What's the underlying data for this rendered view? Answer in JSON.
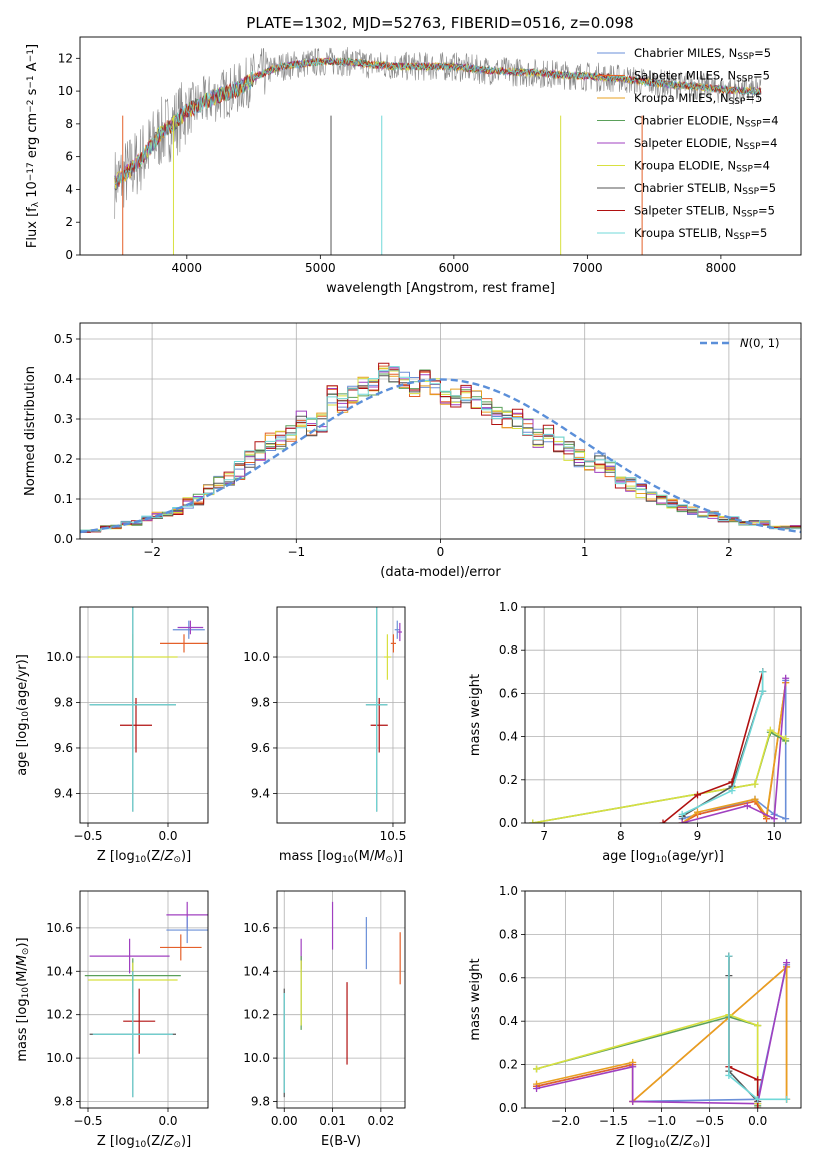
{
  "figure": {
    "title": "PLATE=1302, MJD=52763, FIBERID=0516, z=0.098"
  },
  "series_names": [
    "Chabrier MILES, N$SSP=5",
    "Salpeter MILES, N$SSP=5",
    "Kroupa MILES, N$SSP=5",
    "Chabrier ELODIE, N$SSP=4",
    "Salpeter ELODIE, N$SSP=4",
    "Kroupa ELODIE, N$SSP=4",
    "Chabrier STELIB, N$SSP=5",
    "Salpeter STELIB, N$SSP=5",
    "Kroupa STELIB, N$SSP=5"
  ],
  "legend_entries": [
    {
      "main": "Chabrier MILES, N",
      "sub": "SSP",
      "tail": "=5"
    },
    {
      "main": "Salpeter MILES, N",
      "sub": "SSP",
      "tail": "=5"
    },
    {
      "main": "Kroupa MILES, N",
      "sub": "SSP",
      "tail": "=5"
    },
    {
      "main": "Chabrier ELODIE, N",
      "sub": "SSP",
      "tail": "=4"
    },
    {
      "main": "Salpeter ELODIE, N",
      "sub": "SSP",
      "tail": "=4"
    },
    {
      "main": "Kroupa ELODIE, N",
      "sub": "SSP",
      "tail": "=4"
    },
    {
      "main": "Chabrier STELIB, N",
      "sub": "SSP",
      "tail": "=5"
    },
    {
      "main": "Salpeter STELIB, N",
      "sub": "SSP",
      "tail": "=5"
    },
    {
      "main": "Kroupa STELIB, N",
      "sub": "SSP",
      "tail": "=5"
    }
  ],
  "colors": [
    "#6a8fd8",
    "#e4602a",
    "#e8a020",
    "#5aa05a",
    "#a040c0",
    "#d8e040",
    "#555555",
    "#b01010",
    "#70d8d8"
  ],
  "chart_data": [
    {
      "id": "spectrum",
      "type": "line",
      "title": "PLATE=1302, MJD=52763, FIBERID=0516, z=0.098",
      "xlabel": "wavelength [Angstrom, rest frame]",
      "ylabel": "Flux [f_λ 10^-17 erg cm^-2 s^-1 A^-1]",
      "xlim": [
        3200,
        8600
      ],
      "ylim": [
        0,
        13.3
      ],
      "xticks": [
        4000,
        5000,
        6000,
        7000,
        8000
      ],
      "yticks": [
        0,
        2,
        4,
        6,
        8,
        10,
        12
      ],
      "grid": false,
      "legend_position": "right",
      "data_color": "#888888",
      "model_x": [
        3460,
        3520,
        3600,
        3700,
        3800,
        3900,
        4000,
        4100,
        4200,
        4300,
        4400,
        4500,
        4600,
        4700,
        4800,
        5000,
        5200,
        5400,
        5600,
        5800,
        6000,
        6200,
        6400,
        6600,
        6800,
        7000,
        7200,
        7400,
        7600,
        7800,
        8000,
        8200,
        8300
      ],
      "model_y": [
        4.4,
        4.8,
        5.4,
        6.3,
        7.4,
        8.0,
        8.8,
        9.2,
        9.6,
        9.9,
        10.2,
        10.8,
        11.2,
        11.5,
        11.6,
        11.8,
        11.8,
        11.6,
        11.5,
        11.5,
        11.5,
        11.3,
        11.2,
        11.1,
        11.0,
        10.9,
        10.8,
        10.6,
        10.4,
        10.3,
        10.1,
        10.0,
        10.0
      ]
    },
    {
      "id": "residuals",
      "type": "histogram",
      "xlabel": "(data-model)/error",
      "ylabel": "Normed distribution",
      "xlim": [
        -2.5,
        2.5
      ],
      "ylim": [
        0,
        0.54
      ],
      "xticks": [
        -2,
        -1,
        0,
        1,
        2
      ],
      "yticks": [
        0.0,
        0.1,
        0.2,
        0.3,
        0.4,
        0.5
      ],
      "grid": true,
      "legend": {
        "label": "N(0,1)",
        "position": "top-right"
      },
      "bin_width": 0.1,
      "bins_start": -2.5,
      "values": [
        0.02,
        0.02,
        0.03,
        0.03,
        0.04,
        0.04,
        0.05,
        0.06,
        0.06,
        0.07,
        0.09,
        0.1,
        0.12,
        0.14,
        0.15,
        0.17,
        0.2,
        0.22,
        0.24,
        0.25,
        0.26,
        0.3,
        0.28,
        0.29,
        0.36,
        0.34,
        0.36,
        0.38,
        0.38,
        0.43,
        0.41,
        0.4,
        0.38,
        0.4,
        0.38,
        0.36,
        0.35,
        0.36,
        0.35,
        0.33,
        0.31,
        0.3,
        0.3,
        0.28,
        0.25,
        0.26,
        0.24,
        0.22,
        0.2,
        0.19,
        0.19,
        0.17,
        0.15,
        0.14,
        0.12,
        0.11,
        0.1,
        0.09,
        0.08,
        0.07,
        0.06,
        0.06,
        0.05,
        0.05,
        0.04,
        0.04,
        0.04,
        0.03,
        0.03,
        0.03
      ]
    },
    {
      "id": "age-vs-Z",
      "type": "scatter",
      "xlabel": "Z [log10(Z/Z☉)]",
      "ylabel": "age [log10(age/yr)]",
      "xlim": [
        -0.55,
        0.25
      ],
      "ylim": [
        9.27,
        10.22
      ],
      "xticks": [
        -0.5,
        0.0
      ],
      "xtick_labels": [
        "−0.5",
        "0.0"
      ],
      "yticks": [
        9.4,
        9.6,
        9.8,
        10.0
      ],
      "grid": true,
      "points": [
        {
          "x": 0.13,
          "y": 10.12,
          "xerr": 0.1,
          "yerr": 0.04,
          "series": 0
        },
        {
          "x": 0.1,
          "y": 10.06,
          "xerr": 0.15,
          "yerr": 0.04,
          "series": 1
        },
        {
          "x": 0.14,
          "y": 10.13,
          "xerr": 0.08,
          "yerr": 0.03,
          "series": 4
        },
        {
          "x": -0.22,
          "y": 10.0,
          "xerr": 0.28,
          "yerr": 0.1,
          "series": 5
        },
        {
          "x": -0.22,
          "y": 9.79,
          "xerr": 0.27,
          "yerr": 0.47,
          "series": 6
        },
        {
          "x": -0.2,
          "y": 9.7,
          "xerr": 0.1,
          "yerr": 0.12,
          "series": 7
        },
        {
          "x": -0.22,
          "y": 9.79,
          "xerr": 0.27,
          "yerr": 0.47,
          "series": 8
        }
      ]
    },
    {
      "id": "age-vs-mass",
      "type": "scatter",
      "xlabel": "mass [log10(M/M☉)]",
      "ylabel": "",
      "xlim": [
        7.8,
        10.78
      ],
      "ylim": [
        9.27,
        10.22
      ],
      "xticks": [
        10.5
      ],
      "xtick_labels": [
        "10.5"
      ],
      "yticks": [
        9.4,
        9.6,
        9.8,
        10.0
      ],
      "grid": true,
      "points": [
        {
          "x": 10.6,
          "y": 10.12,
          "xerr": 0.06,
          "yerr": 0.04,
          "series": 0
        },
        {
          "x": 10.51,
          "y": 10.06,
          "xerr": 0.06,
          "yerr": 0.04,
          "series": 1
        },
        {
          "x": 10.66,
          "y": 10.11,
          "xerr": 0.05,
          "yerr": 0.04,
          "series": 4
        },
        {
          "x": 10.37,
          "y": 10.0,
          "xerr": 0.08,
          "yerr": 0.1,
          "series": 5
        },
        {
          "x": 10.12,
          "y": 9.79,
          "xerr": 0.25,
          "yerr": 0.47,
          "series": 6
        },
        {
          "x": 10.18,
          "y": 9.7,
          "xerr": 0.2,
          "yerr": 0.12,
          "series": 7
        },
        {
          "x": 10.12,
          "y": 9.79,
          "xerr": 0.25,
          "yerr": 0.47,
          "series": 8
        }
      ]
    },
    {
      "id": "mass-weight-vs-age",
      "type": "line",
      "xlabel": "age [log10(age/yr)]",
      "ylabel": "mass weight",
      "xlim": [
        6.75,
        10.35
      ],
      "ylim": [
        0,
        1.0
      ],
      "xticks": [
        7,
        8,
        9,
        10
      ],
      "yticks": [
        0.0,
        0.2,
        0.4,
        0.6,
        0.8,
        1.0
      ],
      "grid": true,
      "series": [
        {
          "series": 0,
          "x": [
            8.8,
            9.75,
            10.0,
            10.15,
            10.15
          ],
          "y": [
            0.02,
            0.11,
            0.04,
            0.02,
            0.66
          ]
        },
        {
          "series": 1,
          "x": [
            8.8,
            9.0,
            9.75,
            9.9,
            10.15
          ],
          "y": [
            0.0,
            0.04,
            0.1,
            0.02,
            0.65
          ]
        },
        {
          "series": 2,
          "x": [
            8.8,
            9.0,
            9.75,
            9.9,
            10.15
          ],
          "y": [
            0.0,
            0.05,
            0.11,
            0.03,
            0.65
          ]
        },
        {
          "series": 3,
          "x": [
            6.85,
            9.75,
            9.95,
            10.15
          ],
          "y": [
            0.0,
            0.18,
            0.42,
            0.38
          ]
        },
        {
          "series": 4,
          "x": [
            8.8,
            9.65,
            10.0,
            10.15
          ],
          "y": [
            0.0,
            0.08,
            0.02,
            0.67
          ]
        },
        {
          "series": 5,
          "x": [
            6.85,
            9.75,
            9.95,
            10.15
          ],
          "y": [
            0.0,
            0.18,
            0.43,
            0.39
          ]
        },
        {
          "series": 6,
          "x": [
            8.8,
            9.45,
            9.85,
            9.85
          ],
          "y": [
            0.03,
            0.17,
            0.61,
            0.7
          ]
        },
        {
          "series": 7,
          "x": [
            8.55,
            9.0,
            9.45,
            9.85
          ],
          "y": [
            0.0,
            0.13,
            0.19,
            0.7
          ]
        },
        {
          "series": 8,
          "x": [
            8.8,
            9.45,
            9.85,
            9.85
          ],
          "y": [
            0.04,
            0.15,
            0.61,
            0.7
          ]
        }
      ]
    },
    {
      "id": "mass-vs-Z",
      "type": "scatter",
      "xlabel": "Z [log10(Z/Z☉)]",
      "ylabel": "mass [log10(M/M☉)]",
      "xlim": [
        -0.55,
        0.25
      ],
      "ylim": [
        9.77,
        10.77
      ],
      "xticks": [
        -0.5,
        0.0
      ],
      "xtick_labels": [
        "−0.5",
        "0.0"
      ],
      "yticks": [
        9.8,
        10.0,
        10.2,
        10.4,
        10.6
      ],
      "grid": true,
      "points": [
        {
          "x": 0.12,
          "y": 10.66,
          "xerr": 0.13,
          "yerr": 0.06,
          "series": 4
        },
        {
          "x": 0.12,
          "y": 10.59,
          "xerr": 0.13,
          "yerr": 0.06,
          "series": 0
        },
        {
          "x": 0.08,
          "y": 10.51,
          "xerr": 0.13,
          "yerr": 0.06,
          "series": 1
        },
        {
          "x": -0.24,
          "y": 10.47,
          "xerr": 0.25,
          "yerr": 0.08,
          "series": 4
        },
        {
          "x": -0.22,
          "y": 10.38,
          "xerr": 0.3,
          "yerr": 0.08,
          "series": 3
        },
        {
          "x": -0.22,
          "y": 10.36,
          "xerr": 0.28,
          "yerr": 0.08,
          "series": 5
        },
        {
          "x": -0.18,
          "y": 10.17,
          "xerr": 0.1,
          "yerr": 0.15,
          "series": 7
        },
        {
          "x": -0.22,
          "y": 10.11,
          "xerr": 0.27,
          "yerr": 0.29,
          "series": 6
        },
        {
          "x": -0.22,
          "y": 10.11,
          "xerr": 0.25,
          "yerr": 0.29,
          "series": 8
        }
      ]
    },
    {
      "id": "mass-vs-ebv",
      "type": "scatter",
      "xlabel": "E(B-V)",
      "ylabel": "",
      "xlim": [
        -0.0015,
        0.025
      ],
      "ylim": [
        9.77,
        10.77
      ],
      "xticks": [
        0.0,
        0.01,
        0.02
      ],
      "xtick_labels": [
        "0.00",
        "0.01",
        "0.02"
      ],
      "yticks": [
        9.8,
        10.0,
        10.2,
        10.4,
        10.6
      ],
      "grid": true,
      "points": [
        {
          "x": 0.01,
          "y": 10.61,
          "xerr": 0.0,
          "yerr": 0.11,
          "series": 4
        },
        {
          "x": 0.017,
          "y": 10.53,
          "xerr": 0.0,
          "yerr": 0.12,
          "series": 0
        },
        {
          "x": 0.024,
          "y": 10.46,
          "xerr": 0.0,
          "yerr": 0.12,
          "series": 1
        },
        {
          "x": 0.0035,
          "y": 10.48,
          "xerr": 0.0,
          "yerr": 0.07,
          "series": 4
        },
        {
          "x": 0.0035,
          "y": 10.3,
          "xerr": 0.0,
          "yerr": 0.17,
          "series": 3
        },
        {
          "x": 0.0035,
          "y": 10.3,
          "xerr": 0.0,
          "yerr": 0.15,
          "series": 5
        },
        {
          "x": 0.013,
          "y": 10.16,
          "xerr": 0.0,
          "yerr": 0.19,
          "series": 7
        },
        {
          "x": 0.0,
          "y": 10.07,
          "xerr": 0.0,
          "yerr": 0.25,
          "series": 6
        },
        {
          "x": 0.0,
          "y": 10.07,
          "xerr": 0.0,
          "yerr": 0.23,
          "series": 8
        }
      ]
    },
    {
      "id": "mass-weight-vs-Z",
      "type": "line",
      "xlabel": "Z [log10(Z/Z☉)]",
      "ylabel": "mass weight",
      "xlim": [
        -2.42,
        0.45
      ],
      "ylim": [
        0,
        1.0
      ],
      "xticks": [
        -2.0,
        -1.5,
        -1.0,
        -0.5,
        0.0
      ],
      "xtick_labels": [
        "−2.0",
        "−1.5",
        "−1.0",
        "−0.5",
        "0.0"
      ],
      "yticks": [
        0.0,
        0.2,
        0.4,
        0.6,
        0.8,
        1.0
      ],
      "grid": true,
      "series": [
        {
          "series": 0,
          "x": [
            -2.3,
            -1.3,
            -1.3,
            0.0,
            0.3
          ],
          "y": [
            0.1,
            0.2,
            0.03,
            0.04,
            0.66
          ]
        },
        {
          "series": 1,
          "x": [
            -2.3,
            -1.3,
            -1.3,
            0.3,
            0.3
          ],
          "y": [
            0.1,
            0.2,
            0.03,
            0.65,
            0.04
          ]
        },
        {
          "series": 2,
          "x": [
            -2.3,
            -1.3,
            -1.3,
            0.3,
            0.3
          ],
          "y": [
            0.11,
            0.21,
            0.03,
            0.65,
            0.04
          ]
        },
        {
          "series": 3,
          "x": [
            -2.3,
            -0.3,
            0.0,
            0.0
          ],
          "y": [
            0.18,
            0.42,
            0.38,
            0.01
          ]
        },
        {
          "series": 4,
          "x": [
            -2.3,
            -1.3,
            -1.3,
            0.0,
            0.3
          ],
          "y": [
            0.09,
            0.19,
            0.03,
            0.02,
            0.67
          ]
        },
        {
          "series": 5,
          "x": [
            -2.3,
            -0.3,
            0.0,
            0.0
          ],
          "y": [
            0.18,
            0.43,
            0.38,
            0.02
          ]
        },
        {
          "series": 6,
          "x": [
            -0.3,
            -0.3,
            -0.3,
            0.0
          ],
          "y": [
            0.7,
            0.61,
            0.17,
            0.03
          ]
        },
        {
          "series": 7,
          "x": [
            -0.3,
            -0.3,
            0.0,
            0.0
          ],
          "y": [
            0.7,
            0.19,
            0.13,
            0.0
          ]
        },
        {
          "series": 8,
          "x": [
            -0.3,
            -0.3,
            0.0,
            0.3
          ],
          "y": [
            0.7,
            0.15,
            0.04,
            0.04
          ]
        }
      ]
    }
  ]
}
